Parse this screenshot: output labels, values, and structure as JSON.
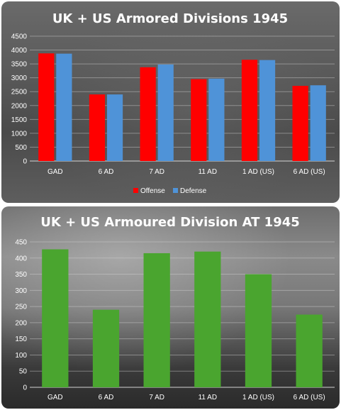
{
  "chart_data": [
    {
      "type": "bar",
      "title": "UK + US Armored Divisions  1945",
      "categories": [
        "GAD",
        "6 AD",
        "7 AD",
        "11 AD",
        "1 AD (US)",
        "6 AD (US)"
      ],
      "series": [
        {
          "name": "Offense",
          "color": "#ff0000",
          "values": [
            3880,
            2400,
            3380,
            2950,
            3650,
            2710
          ]
        },
        {
          "name": "Defense",
          "color": "#4f93d8",
          "values": [
            3870,
            2400,
            3480,
            2970,
            3640,
            2730
          ]
        }
      ],
      "ylim": [
        0,
        4500
      ],
      "yticks": [
        0,
        500,
        1000,
        1500,
        2000,
        2500,
        3000,
        3500,
        4000,
        4500
      ],
      "grid": true,
      "legend": "bottom"
    },
    {
      "type": "bar",
      "title": "UK + US Armoured Division  AT 1945",
      "categories": [
        "GAD",
        "6 AD",
        "7 AD",
        "11 AD",
        "1 AD (US)",
        "6 AD (US)"
      ],
      "series": [
        {
          "color": "#4aa52f",
          "values": [
            427,
            240,
            415,
            420,
            350,
            225
          ]
        }
      ],
      "ylim": [
        0,
        450
      ],
      "yticks": [
        0,
        50,
        100,
        150,
        200,
        250,
        300,
        350,
        400,
        450
      ],
      "grid": true,
      "legend": "none"
    }
  ]
}
